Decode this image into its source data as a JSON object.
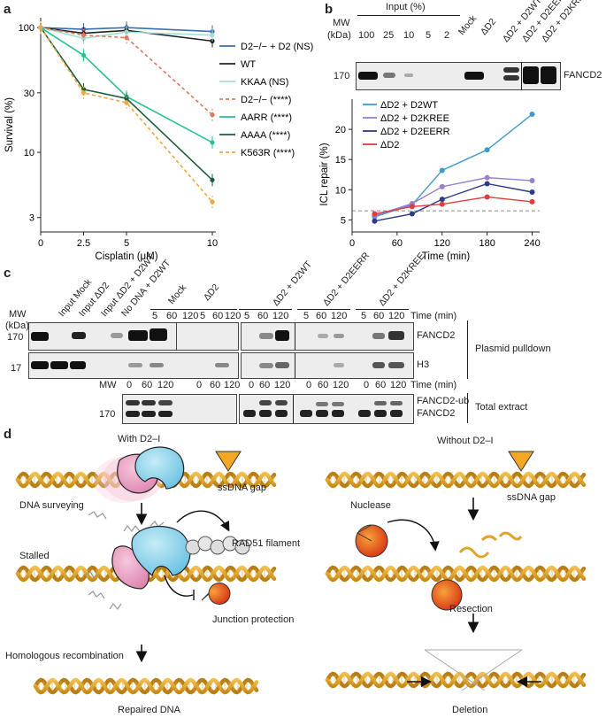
{
  "panels": {
    "a": "a",
    "b": "b",
    "c": "c",
    "d": "d"
  },
  "chart_data": [
    {
      "type": "line",
      "panel": "a",
      "xlabel": "Cisplatin (μM)",
      "ylabel": "Survival (%)",
      "x": [
        0,
        2.5,
        5,
        10
      ],
      "xticks": [
        "0",
        "2.5",
        "5",
        "10"
      ],
      "yscale": "log",
      "ylim": [
        2.3,
        120
      ],
      "yticks": [
        "100",
        "30",
        "10",
        "3"
      ],
      "series": [
        {
          "name": "D2−/− + D2 (NS)",
          "color": "#3a6fb5",
          "dash": false,
          "values": [
            100,
            97,
            100,
            93
          ]
        },
        {
          "name": "WT",
          "color": "#222222",
          "dash": false,
          "values": [
            100,
            90,
            95,
            78
          ]
        },
        {
          "name": "KKAA (NS)",
          "color": "#9ee0d2",
          "dash": false,
          "values": [
            100,
            82,
            92,
            87
          ]
        },
        {
          "name": "D2−/− (****)",
          "color": "#e07a5f",
          "dash": true,
          "values": [
            100,
            87,
            83,
            20
          ]
        },
        {
          "name": "AARR (****)",
          "color": "#2bbf94",
          "dash": false,
          "values": [
            100,
            60,
            28,
            12
          ]
        },
        {
          "name": "AAAA (****)",
          "color": "#1f5c3a",
          "dash": false,
          "values": [
            100,
            32,
            27,
            6
          ]
        },
        {
          "name": "K563R (****)",
          "color": "#f4a742",
          "dash": true,
          "values": [
            100,
            30,
            25,
            4
          ]
        }
      ]
    },
    {
      "type": "line",
      "panel": "b",
      "xlabel": "Time (min)",
      "ylabel": "ICL repair (%)",
      "x": [
        30,
        80,
        120,
        180,
        240
      ],
      "xticks": [
        "0",
        "60",
        "120",
        "180",
        "240"
      ],
      "ylim": [
        3,
        25
      ],
      "yticks": [
        "5",
        "10",
        "15",
        "20"
      ],
      "series": [
        {
          "name": "ΔD2 + D2WT",
          "color": "#3d9ad1",
          "values": [
            5.5,
            7.5,
            13.2,
            16.6,
            22.5
          ]
        },
        {
          "name": "ΔD2 + D2KREE",
          "color": "#9b7fc9",
          "values": [
            5.7,
            7.7,
            10.5,
            12.0,
            11.5
          ]
        },
        {
          "name": "ΔD2 + D2EERR",
          "color": "#2c3a87",
          "values": [
            4.8,
            6.0,
            8.4,
            11.0,
            9.6
          ]
        },
        {
          "name": "ΔD2",
          "color": "#e23c3c",
          "values": [
            6.0,
            7.2,
            7.6,
            8.8,
            8.0
          ]
        }
      ]
    }
  ],
  "blot_b": {
    "mw_label": "MW",
    "kda_label": "(kDa)",
    "input_header": "Input (%)",
    "input_lanes": [
      "100",
      "25",
      "10",
      "5",
      "2"
    ],
    "other_lanes": [
      "Mock",
      "ΔD2",
      "ΔD2 + D2WT",
      "ΔD2 + D2EERR",
      "ΔD2 + D2KREE"
    ],
    "mw": "170",
    "band_label": "FANCD2"
  },
  "blot_c": {
    "lane_headers": [
      "Input Mock",
      "Input ΔD2",
      "Input ΔD2 + D2WT",
      "No DNA + D2WT",
      "Mock"
    ],
    "groups": [
      "ΔD2",
      "ΔD2 + D2WT",
      "ΔD2 + D2EERR",
      "ΔD2 + D2KREE"
    ],
    "times": [
      "5",
      "60",
      "120"
    ],
    "times_total": [
      "0",
      "60",
      "120"
    ],
    "time_label": "Time (min)",
    "mw_label": "MW",
    "kda_label": "(kDa)",
    "mw_fancd2": "170",
    "mw_h3": "17",
    "label_fancd2": "FANCD2",
    "label_h3": "H3",
    "label_pulldown": "Plasmid pulldown",
    "label_ub": "FANCD2-ub",
    "label_total": "Total extract"
  },
  "diagram": {
    "with_title": "With D2–I",
    "without_title": "Without D2–I",
    "ssdna_gap": "ssDNA gap",
    "dna_surveying": "DNA surveying",
    "stalled": "Stalled",
    "rad51": "RAD51 filament",
    "junction": "Junction protection",
    "hr": "Homologous recombination",
    "repaired": "Repaired DNA",
    "nuclease": "Nuclease",
    "resection": "Resection",
    "deletion": "Deletion"
  },
  "colors": {
    "dna": "#e2a32c",
    "protein_blue": "#8fd3ec",
    "protein_pink": "#e89ac0",
    "nuclease": "#e8481c",
    "gap": "#f5a623"
  }
}
